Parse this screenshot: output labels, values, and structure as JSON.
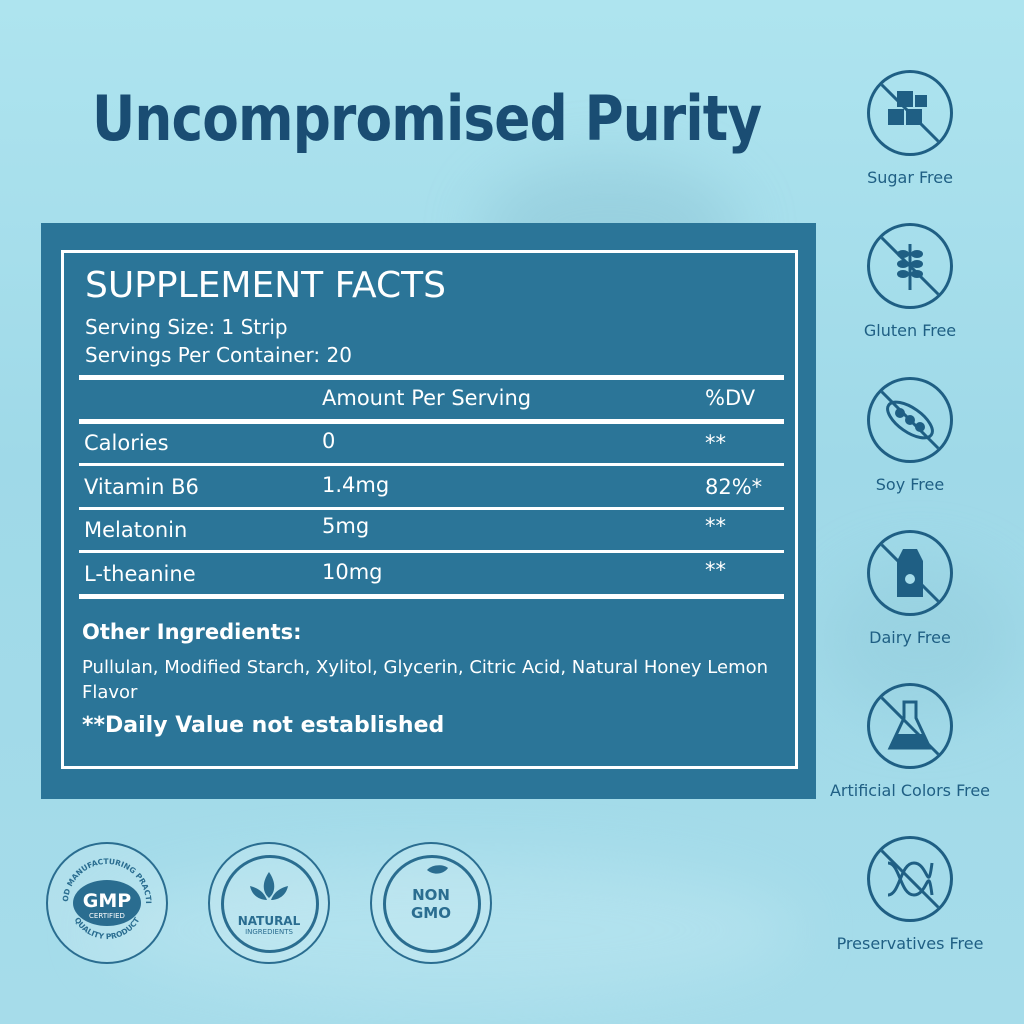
{
  "headline": "Uncompromised Purity",
  "facts": {
    "title": "SUPPLEMENT FACTS",
    "serving_size": "Serving Size: 1 Strip",
    "servings_per_container": "Servings Per Container: 20",
    "header_amount": "Amount Per Serving",
    "header_dv": "%DV",
    "rows": [
      {
        "name": "Calories",
        "amount": "0",
        "dv": "**"
      },
      {
        "name": "Vitamin B6",
        "amount": "1.4mg",
        "dv": "82%*"
      },
      {
        "name": "Melatonin",
        "amount": "5mg",
        "dv": "**"
      },
      {
        "name": "L-theanine",
        "amount": "10mg",
        "dv": "**"
      }
    ],
    "other_title": "Other Ingredients:",
    "other_text": "Pullulan, Modified Starch, Xylitol, Glycerin, Citric Acid, Natural Honey Lemon Flavor",
    "dv_note": "**Daily Value not established"
  },
  "badges": [
    {
      "label": "Sugar Free",
      "icon": "sugar-cubes-icon"
    },
    {
      "label": "Gluten Free",
      "icon": "wheat-icon"
    },
    {
      "label": "Soy Free",
      "icon": "soybean-icon"
    },
    {
      "label": "Dairy Free",
      "icon": "milk-carton-icon"
    },
    {
      "label": "Artificial Colors Free",
      "icon": "flask-icon"
    },
    {
      "label": "Preservatives Free",
      "icon": "dna-icon"
    }
  ],
  "seals": {
    "gmp": {
      "main": "GMP",
      "sub": "CERTIFIED",
      "ring_top": "GOOD MANUFACTURING PRACTICE",
      "ring_bottom": "QUALITY PRODUCT"
    },
    "natural": {
      "line1": "NATURAL",
      "line2": "INGREDIENTS"
    },
    "nongmo": {
      "line1": "NON",
      "line2": "GMO"
    }
  },
  "colors": {
    "panel": "#2b7598",
    "headline": "#1a4d73",
    "icon": "#1f5f84",
    "background": "#a6dcea"
  }
}
